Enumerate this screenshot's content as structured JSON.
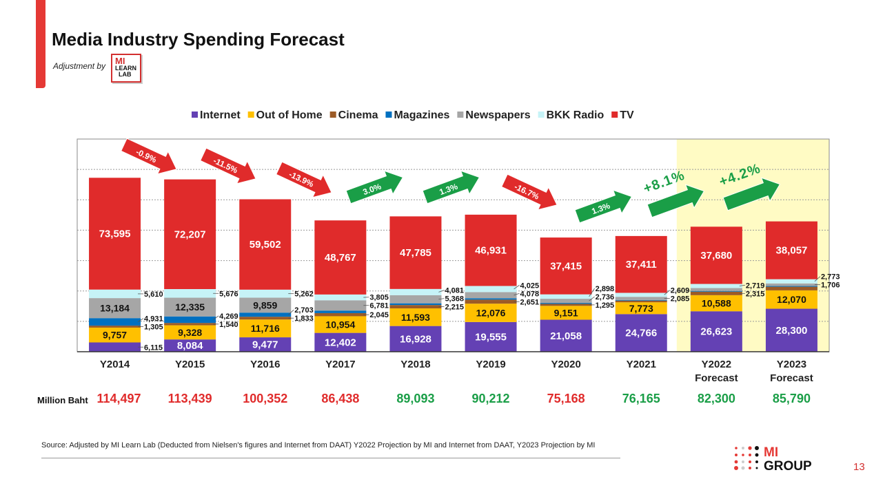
{
  "header": {
    "title": "Media Industry Spending Forecast",
    "adjustment_label": "Adjustment by",
    "logo_text": "MI LEARN LAB"
  },
  "footer": {
    "source": "Source: Adjusted by MI Learn Lab (Deducted  from Nielsen's figures and Internet from DAAT) Y2022 Projection by MI and Internet from DAAT, Y2023 Projection by MI",
    "brand_logo": "MI GROUP",
    "page_number": "13"
  },
  "chart_data": {
    "type": "bar",
    "stacked": true,
    "ylim": [
      0,
      140000
    ],
    "grid": true,
    "legend_position": "top",
    "categories": [
      "Y2014",
      "Y2015",
      "Y2016",
      "Y2017",
      "Y2018",
      "Y2019",
      "Y2020",
      "Y2021",
      "Y2022 Forecast",
      "Y2023 Forecast"
    ],
    "forecast_highlight_color": "#fffbc4",
    "series": [
      {
        "name": "Internet",
        "color": "#6441b4",
        "label_color": "#ffffff",
        "values": [
          6115,
          8084,
          9477,
          12402,
          16928,
          19555,
          21058,
          24766,
          26623,
          28300
        ],
        "labels": [
          true,
          true,
          true,
          true,
          true,
          true,
          true,
          true,
          true,
          true
        ]
      },
      {
        "name": "Out of Home",
        "color": "#ffc000",
        "label_color": "#111111",
        "values": [
          9757,
          9328,
          11716,
          10954,
          11593,
          12076,
          9151,
          7773,
          10588,
          12070
        ],
        "labels": [
          true,
          true,
          true,
          true,
          true,
          true,
          true,
          true,
          true,
          true
        ]
      },
      {
        "name": "Cinema",
        "color": "#9c5b26",
        "label_color": "#ffffff",
        "values": [
          1305,
          1540,
          1833,
          2045,
          2215,
          2651,
          1295,
          1100,
          2315,
          2400
        ],
        "labels": [
          true,
          true,
          true,
          true,
          true,
          true,
          true,
          false,
          true,
          false
        ]
      },
      {
        "name": "Magazines",
        "color": "#0070c0",
        "label_color": "#ffffff",
        "values": [
          4931,
          4269,
          2703,
          1684,
          1123,
          896,
          615,
          421,
          475,
          484
        ],
        "labels": [
          true,
          true,
          true,
          false,
          false,
          false,
          false,
          false,
          false,
          false
        ]
      },
      {
        "name": "Newspapers",
        "color": "#a6a6a6",
        "label_color": "#111111",
        "values": [
          13184,
          12335,
          9859,
          6781,
          5368,
          4078,
          2736,
          2085,
          1900,
          1706
        ],
        "labels": [
          true,
          true,
          true,
          true,
          true,
          true,
          true,
          true,
          false,
          true
        ]
      },
      {
        "name": "BKK Radio",
        "color": "#c6f3f7",
        "label_color": "#111111",
        "values": [
          5610,
          5676,
          5262,
          3805,
          4081,
          4025,
          2898,
          2609,
          2719,
          2773
        ],
        "labels": [
          true,
          true,
          true,
          true,
          true,
          true,
          true,
          true,
          true,
          true
        ]
      },
      {
        "name": "TV",
        "color": "#e02b2b",
        "label_color": "#ffffff",
        "values": [
          73595,
          72207,
          59502,
          48767,
          47785,
          46931,
          37415,
          37411,
          37680,
          38057
        ],
        "labels": [
          true,
          true,
          true,
          true,
          true,
          true,
          true,
          true,
          true,
          true
        ]
      }
    ],
    "totals_label": "Million Baht",
    "totals": [
      {
        "value": "114,497",
        "color": "#e02b2b"
      },
      {
        "value": "113,439",
        "color": "#e02b2b"
      },
      {
        "value": "100,352",
        "color": "#e02b2b"
      },
      {
        "value": "86,438",
        "color": "#e02b2b"
      },
      {
        "value": "89,093",
        "color": "#1a9e47"
      },
      {
        "value": "90,212",
        "color": "#1a9e47"
      },
      {
        "value": "75,168",
        "color": "#e02b2b"
      },
      {
        "value": "76,165",
        "color": "#1a9e47"
      },
      {
        "value": "82,300",
        "color": "#1a9e47"
      },
      {
        "value": "85,790",
        "color": "#1a9e47"
      }
    ],
    "growth_annotations": [
      {
        "text": "-0.9%",
        "direction": "down"
      },
      {
        "text": "-11.5%",
        "direction": "down"
      },
      {
        "text": "-13.9%",
        "direction": "down"
      },
      {
        "text": "3.0%",
        "direction": "up"
      },
      {
        "text": "1.3%",
        "direction": "up"
      },
      {
        "text": "-16.7%",
        "direction": "down"
      },
      {
        "text": "1.3%",
        "direction": "up"
      },
      {
        "text": "+8.1%",
        "direction": "up",
        "outside": true
      },
      {
        "text": "+4.2%",
        "direction": "up",
        "outside": true
      }
    ]
  }
}
